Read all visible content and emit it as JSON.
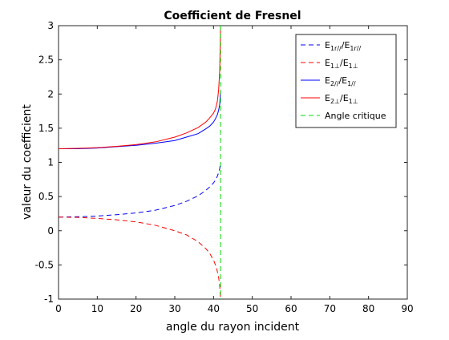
{
  "chart_data": {
    "type": "line",
    "title": "Coefficient de Fresnel",
    "xlabel": "angle du rayon incident",
    "ylabel": "valeur du coefficient",
    "xlim": [
      0,
      90
    ],
    "ylim": [
      -1,
      3
    ],
    "xticks": [
      "0",
      "10",
      "20",
      "30",
      "40",
      "50",
      "60",
      "70",
      "80",
      "90"
    ],
    "yticks": [
      "-1",
      "-0.5",
      "0",
      "0.5",
      "1",
      "1.5",
      "2",
      "2.5",
      "3"
    ],
    "grid": false,
    "legend_position": "top-right",
    "series": [
      {
        "name_main": "E",
        "name_sub1": "1r//",
        "name_mid": "/E",
        "name_sub2": "1r//",
        "color": "#0000ff",
        "dash": "dashed",
        "x": [
          0,
          5,
          10,
          15,
          20,
          25,
          30,
          33,
          36,
          38,
          39,
          40,
          40.5,
          41,
          41.3,
          41.6,
          41.8
        ],
        "y": [
          0.2,
          0.205,
          0.215,
          0.235,
          0.26,
          0.3,
          0.37,
          0.43,
          0.51,
          0.59,
          0.64,
          0.7,
          0.74,
          0.8,
          0.85,
          0.91,
          1.0
        ]
      },
      {
        "name_main": "E",
        "name_sub1": "1⊥",
        "name_mid": "/E",
        "name_sub2": "1⊥",
        "color": "#ff0000",
        "dash": "dashed",
        "x": [
          0,
          5,
          10,
          15,
          20,
          25,
          30,
          33,
          36,
          38,
          39,
          40,
          40.5,
          41,
          41.3,
          41.6,
          41.8
        ],
        "y": [
          0.2,
          0.195,
          0.18,
          0.16,
          0.13,
          0.08,
          0.0,
          -0.06,
          -0.16,
          -0.26,
          -0.33,
          -0.43,
          -0.5,
          -0.6,
          -0.68,
          -0.8,
          -1.0
        ]
      },
      {
        "name_main": "E",
        "name_sub1": "2//",
        "name_mid": "/E",
        "name_sub2": "1//",
        "color": "#0000ff",
        "dash": "solid",
        "x": [
          0,
          5,
          10,
          15,
          20,
          25,
          30,
          33,
          36,
          38,
          39,
          40,
          40.5,
          41,
          41.3,
          41.6,
          41.8
        ],
        "y": [
          1.2,
          1.2,
          1.21,
          1.23,
          1.25,
          1.28,
          1.32,
          1.37,
          1.42,
          1.49,
          1.53,
          1.59,
          1.64,
          1.7,
          1.76,
          1.85,
          2.05
        ]
      },
      {
        "name_main": "E",
        "name_sub1": "2⊥",
        "name_mid": "/E",
        "name_sub2": "1⊥",
        "color": "#ff0000",
        "dash": "solid",
        "x": [
          0,
          5,
          10,
          15,
          20,
          25,
          30,
          33,
          36,
          38,
          39,
          40,
          40.5,
          41,
          41.3,
          41.6,
          41.8
        ],
        "y": [
          1.2,
          1.205,
          1.215,
          1.235,
          1.26,
          1.3,
          1.37,
          1.43,
          1.51,
          1.59,
          1.65,
          1.72,
          1.78,
          1.9,
          2.05,
          2.35,
          3.0
        ]
      }
    ],
    "critical_angle": {
      "name": "Angle critique",
      "x": 41.8,
      "color": "#00dd00",
      "dash": "dashed"
    }
  }
}
